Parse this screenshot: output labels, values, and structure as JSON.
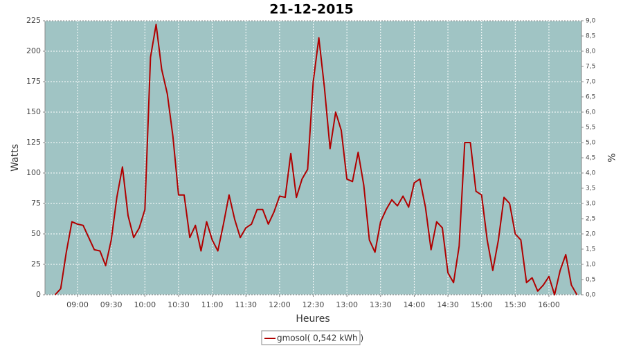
{
  "chart_data": {
    "type": "line",
    "title": "21-12-2015",
    "x_label": "Heures",
    "y_label": "Watts",
    "y2_label": "%",
    "xlim": [
      "08:31",
      "16:29"
    ],
    "xticks": [
      "09:00",
      "09:30",
      "10:00",
      "10:30",
      "11:00",
      "11:30",
      "12:00",
      "12:30",
      "13:00",
      "13:30",
      "14:00",
      "14:30",
      "15:00",
      "15:30",
      "16:00"
    ],
    "ylim": [
      0,
      225
    ],
    "yticks": [
      0,
      25,
      50,
      75,
      100,
      125,
      150,
      175,
      200,
      225
    ],
    "y2lim": [
      0,
      9
    ],
    "y2ticks": [
      {
        "value": 0,
        "label": "0,0"
      },
      {
        "value": 0.5,
        "label": "0,5"
      },
      {
        "value": 1,
        "label": "1,0"
      },
      {
        "value": 1.5,
        "label": "1,5"
      },
      {
        "value": 2,
        "label": "2,0"
      },
      {
        "value": 2.5,
        "label": "2,5"
      },
      {
        "value": 3,
        "label": "3,0"
      },
      {
        "value": 3.5,
        "label": "3,5"
      },
      {
        "value": 4,
        "label": "4,0"
      },
      {
        "value": 4.5,
        "label": "4,5"
      },
      {
        "value": 5,
        "label": "5,0"
      },
      {
        "value": 5.5,
        "label": "5,5"
      },
      {
        "value": 6,
        "label": "6,0"
      },
      {
        "value": 6.5,
        "label": "6,5"
      },
      {
        "value": 7,
        "label": "7,0"
      },
      {
        "value": 7.5,
        "label": "7,5"
      },
      {
        "value": 8,
        "label": "8,0"
      },
      {
        "value": 8.5,
        "label": "8,5"
      },
      {
        "value": 9,
        "label": "9,0"
      }
    ],
    "grid": true,
    "legend": "bottom",
    "x": [
      "08:40",
      "08:45",
      "08:50",
      "08:55",
      "09:00",
      "09:05",
      "09:10",
      "09:15",
      "09:20",
      "09:25",
      "09:30",
      "09:35",
      "09:40",
      "09:45",
      "09:50",
      "09:55",
      "10:00",
      "10:05",
      "10:10",
      "10:15",
      "10:20",
      "10:25",
      "10:30",
      "10:35",
      "10:40",
      "10:45",
      "10:50",
      "10:55",
      "11:00",
      "11:05",
      "11:10",
      "11:15",
      "11:20",
      "11:25",
      "11:30",
      "11:35",
      "11:40",
      "11:45",
      "11:50",
      "11:55",
      "12:00",
      "12:05",
      "12:10",
      "12:15",
      "12:20",
      "12:25",
      "12:30",
      "12:35",
      "12:40",
      "12:45",
      "12:50",
      "12:55",
      "13:00",
      "13:05",
      "13:10",
      "13:15",
      "13:20",
      "13:25",
      "13:30",
      "13:35",
      "13:40",
      "13:45",
      "13:50",
      "13:55",
      "14:00",
      "14:05",
      "14:10",
      "14:15",
      "14:20",
      "14:25",
      "14:30",
      "14:35",
      "14:40",
      "14:45",
      "14:50",
      "14:55",
      "15:00",
      "15:05",
      "15:10",
      "15:15",
      "15:20",
      "15:25",
      "15:30",
      "15:35",
      "15:40",
      "15:45",
      "15:50",
      "15:55",
      "16:00",
      "16:05",
      "16:10",
      "16:15",
      "16:20",
      "16:25"
    ],
    "series": [
      {
        "name": "gmosol( 0,542 kWh )",
        "color": "#b00000",
        "values": [
          0,
          5,
          35,
          60,
          58,
          57,
          47,
          37,
          36,
          24,
          45,
          80,
          105,
          65,
          47,
          55,
          70,
          195,
          222,
          185,
          165,
          130,
          82,
          82,
          47,
          57,
          36,
          60,
          45,
          36,
          58,
          82,
          62,
          47,
          55,
          58,
          70,
          70,
          58,
          68,
          81,
          80,
          116,
          80,
          95,
          103,
          175,
          211,
          170,
          120,
          150,
          135,
          95,
          93,
          117,
          90,
          45,
          35,
          60,
          70,
          78,
          73,
          81,
          72,
          92,
          95,
          72,
          37,
          60,
          55,
          18,
          10,
          40,
          125,
          125,
          85,
          82,
          45,
          20,
          45,
          80,
          75,
          50,
          45,
          10,
          14,
          3,
          8,
          15,
          0,
          20,
          33,
          8,
          0
        ]
      }
    ]
  }
}
